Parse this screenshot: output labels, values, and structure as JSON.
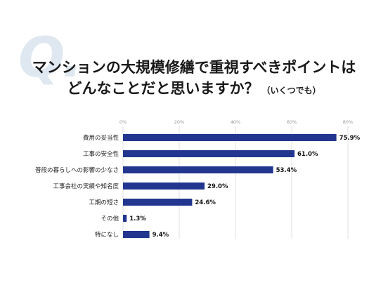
{
  "q_mark": "Q.",
  "title_line1": "マンションの大規模修繕で重視すべきポイントは",
  "title_line2": "どんなことだと思いますか？",
  "title_note": "（いくつでも）",
  "chart_data": {
    "type": "bar",
    "orientation": "horizontal",
    "categories": [
      "費用の妥当性",
      "工事の安全性",
      "普段の暮らしへの影響の少なさ",
      "工事会社の実績や知名度",
      "工期の短さ",
      "その他",
      "特になし"
    ],
    "values": [
      75.9,
      61.0,
      53.4,
      29.0,
      24.6,
      1.3,
      9.4
    ],
    "value_labels": [
      "75.9%",
      "61.0%",
      "53.4%",
      "29.0%",
      "24.6%",
      "1.3%",
      "9.4%"
    ],
    "xlim": [
      0,
      80
    ],
    "xticks": [
      0,
      20,
      40,
      60,
      80
    ],
    "xtick_labels": [
      "0%",
      "20%",
      "40%",
      "60%",
      "80%"
    ],
    "grid": true,
    "bar_color": "#22368f",
    "grid_color": "#d9d9d9"
  }
}
